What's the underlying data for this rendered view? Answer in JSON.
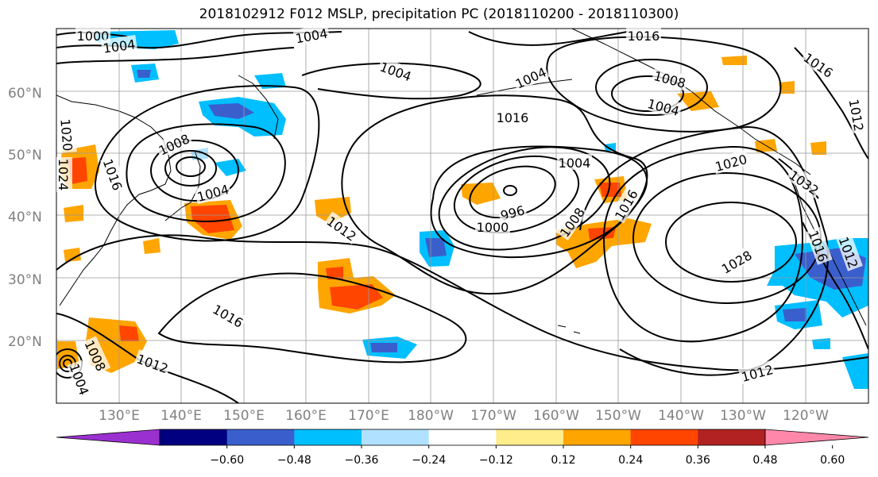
{
  "title": "2018102912 F012 MSLP, precipitation PC (2018110200 - 2018110300)",
  "latitude_labels": [
    "60°N",
    "50°N",
    "40°N",
    "30°N",
    "20°N"
  ],
  "longitude_labels": [
    "130°E",
    "140°E",
    "150°E",
    "160°E",
    "170°E",
    "180°W",
    "170°W",
    "160°W",
    "150°W",
    "140°W",
    "130°W",
    "120°W"
  ],
  "colorbar": {
    "tick_labels": [
      "−0.60",
      "−0.48",
      "−0.36",
      "−0.24",
      "−0.12",
      "0.12",
      "0.24",
      "0.36",
      "0.48",
      "0.60"
    ],
    "colors": [
      "#9b30d0",
      "#000080",
      "#3a5fcd",
      "#00bfff",
      "#b0e2ff",
      "#ffffff",
      "#ffec8b",
      "#ffa500",
      "#ff4500",
      "#b22222",
      "#ff88aa"
    ]
  },
  "isobar_labels": [
    {
      "text": "1000",
      "id": "nw-1000"
    },
    {
      "text": "1004",
      "id": "nw-1004"
    },
    {
      "text": "1004",
      "id": "top-1004"
    },
    {
      "text": "1016",
      "id": "top-1016"
    },
    {
      "text": "1016",
      "id": "ne-1016"
    },
    {
      "text": "1004",
      "id": "bering-1004a"
    },
    {
      "text": "1004",
      "id": "bering-1004b"
    },
    {
      "text": "1008",
      "id": "alaska-1008"
    },
    {
      "text": "1004",
      "id": "alaska-1004"
    },
    {
      "text": "1012",
      "id": "ne-1012"
    },
    {
      "text": "1016",
      "id": "mid-1016"
    },
    {
      "text": "1020",
      "id": "japan-1020"
    },
    {
      "text": "1016",
      "id": "japan-1016"
    },
    {
      "text": "1008",
      "id": "japan-1008"
    },
    {
      "text": "1004",
      "id": "japan-1004"
    },
    {
      "text": "1024",
      "id": "west-1024"
    },
    {
      "text": "1004",
      "id": "low-1004"
    },
    {
      "text": "996",
      "id": "low-996"
    },
    {
      "text": "1000",
      "id": "low-1000"
    },
    {
      "text": "1008",
      "id": "low-1008"
    },
    {
      "text": "1016",
      "id": "low-1016"
    },
    {
      "text": "1020",
      "id": "high-1020"
    },
    {
      "text": "1028",
      "id": "high-1028"
    },
    {
      "text": "1032",
      "id": "coast-1032"
    },
    {
      "text": "1012",
      "id": "pac-1012"
    },
    {
      "text": "1016",
      "id": "pac-1016"
    },
    {
      "text": "1012",
      "id": "sw-1012"
    },
    {
      "text": "1008",
      "id": "sw-1008"
    },
    {
      "text": "1004",
      "id": "sw-1004"
    },
    {
      "text": "1012",
      "id": "se-1012"
    },
    {
      "text": "1016",
      "id": "ca-1016"
    },
    {
      "text": "1012",
      "id": "ca-1012"
    }
  ]
}
